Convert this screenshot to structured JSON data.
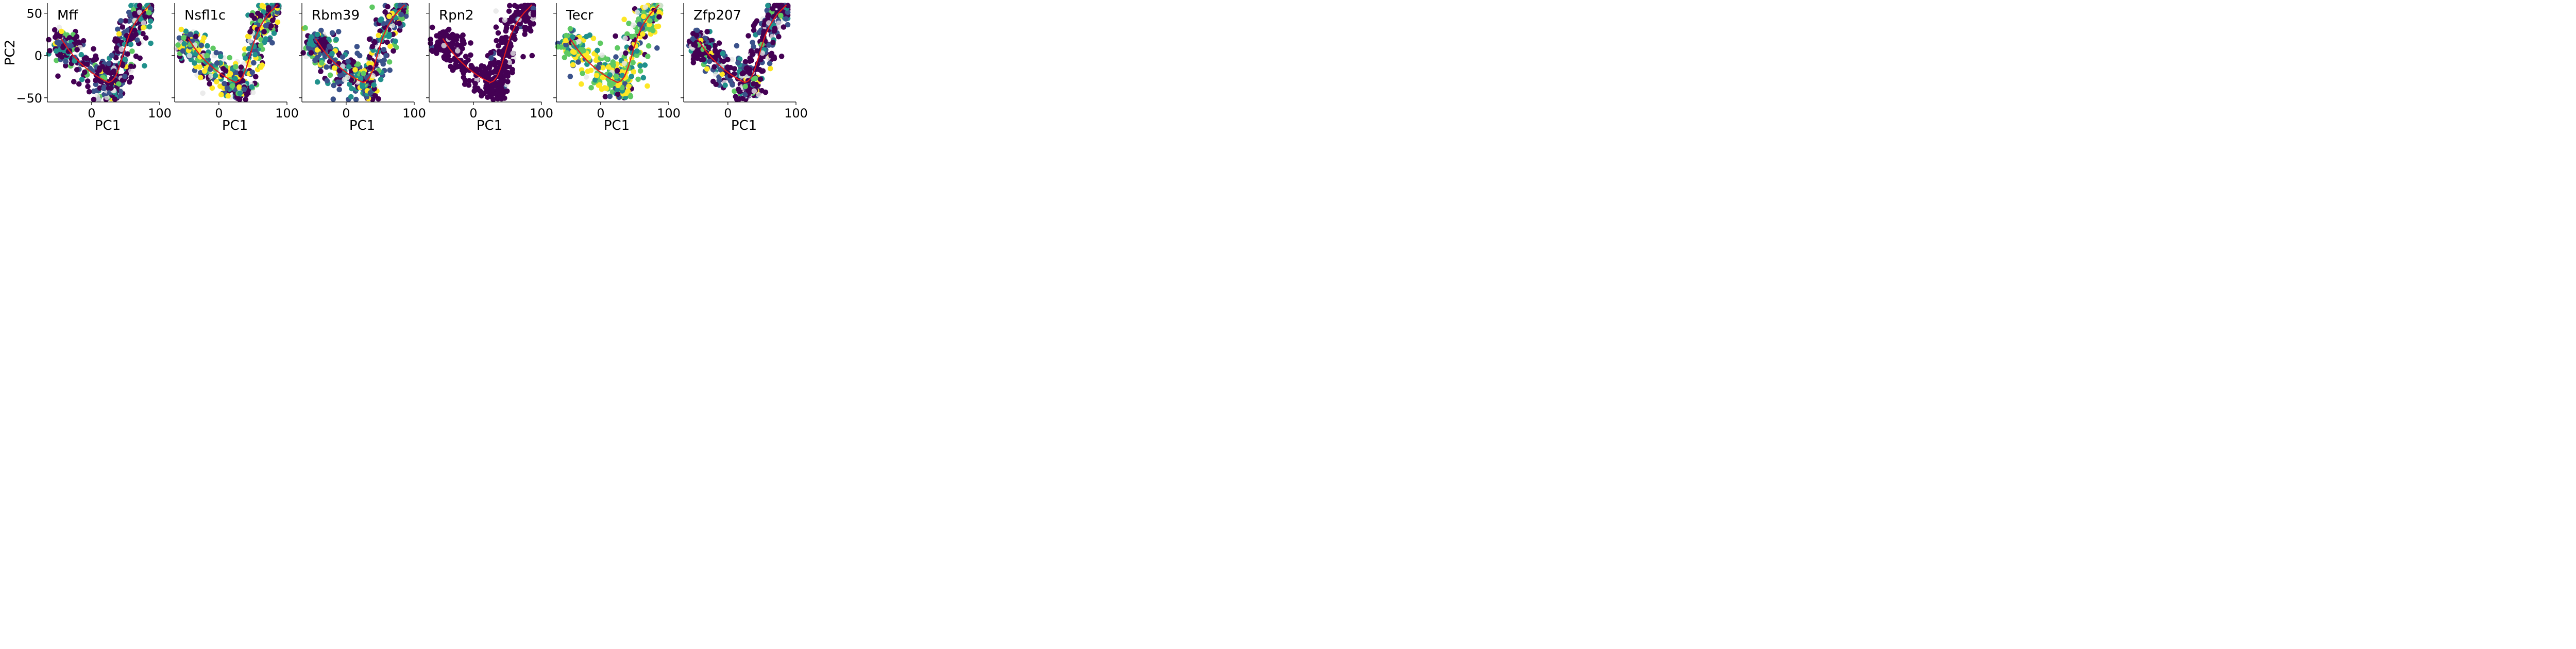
{
  "chart_data": [
    {
      "type": "scatter",
      "title": "Mff",
      "xlabel": "PC1",
      "ylabel": "PC2",
      "xlim": [
        -65,
        100
      ],
      "ylim": [
        -55,
        62
      ],
      "xticks": [
        "0",
        "100"
      ],
      "yticks": [
        "50",
        "0",
        "−50"
      ],
      "grid": false,
      "legend": "none",
      "seed": 11
    },
    {
      "type": "scatter",
      "title": "Nsfl1c",
      "xlabel": "PC1",
      "ylabel": "",
      "xlim": [
        -65,
        100
      ],
      "ylim": [
        -55,
        62
      ],
      "xticks": [
        "0",
        "100"
      ],
      "yticks": [],
      "grid": false,
      "legend": "none",
      "seed": 23
    },
    {
      "type": "scatter",
      "title": "Rbm39",
      "xlabel": "PC1",
      "ylabel": "",
      "xlim": [
        -65,
        100
      ],
      "ylim": [
        -55,
        62
      ],
      "xticks": [
        "0",
        "100"
      ],
      "yticks": [],
      "grid": false,
      "legend": "none",
      "seed": 37
    },
    {
      "type": "scatter",
      "title": "Rpn2",
      "xlabel": "PC1",
      "ylabel": "",
      "xlim": [
        -65,
        100
      ],
      "ylim": [
        -55,
        62
      ],
      "xticks": [
        "0",
        "100"
      ],
      "yticks": [],
      "grid": false,
      "legend": "none",
      "seed": 41
    },
    {
      "type": "scatter",
      "title": "Tecr",
      "xlabel": "PC1",
      "ylabel": "",
      "xlim": [
        -65,
        100
      ],
      "ylim": [
        -55,
        62
      ],
      "xticks": [
        "0",
        "100"
      ],
      "yticks": [],
      "grid": false,
      "legend": "none",
      "seed": 53
    },
    {
      "type": "scatter",
      "title": "Zfp207",
      "xlabel": "PC1",
      "ylabel": "",
      "xlim": [
        -65,
        100
      ],
      "ylim": [
        -55,
        62
      ],
      "xticks": [
        "0",
        "100"
      ],
      "yticks": [],
      "grid": false,
      "legend": "none",
      "seed": 67
    }
  ],
  "shared": {
    "point_colormap": [
      "#440154",
      "#3b528b",
      "#21918c",
      "#5ec962",
      "#fde725"
    ],
    "background_point_color": "#e6e6e6",
    "trajectory_color": "#e41a1c",
    "trajectory_curve": {
      "x": [
        -45,
        -35,
        -25,
        -15,
        -5,
        5,
        15,
        25,
        30,
        35,
        40,
        45,
        50,
        55,
        60,
        65,
        70,
        75,
        80,
        86
      ],
      "y": [
        20,
        8,
        -2,
        -10,
        -17,
        -23,
        -28,
        -32,
        -30,
        -25,
        -15,
        -2,
        12,
        24,
        33,
        40,
        46,
        51,
        55,
        60
      ]
    },
    "panel_palettes": {
      "Mff": [
        0.55,
        0.2,
        0.15,
        0.07,
        0.03
      ],
      "Nsfl1c": [
        0.2,
        0.2,
        0.2,
        0.2,
        0.2
      ],
      "Rbm39": [
        0.3,
        0.3,
        0.2,
        0.12,
        0.08
      ],
      "Rpn2": [
        0.97,
        0.03,
        0,
        0,
        0
      ],
      "Tecr": [
        0.06,
        0.12,
        0.17,
        0.3,
        0.35
      ],
      "Zfp207": [
        0.6,
        0.2,
        0.12,
        0.05,
        0.03
      ]
    }
  }
}
